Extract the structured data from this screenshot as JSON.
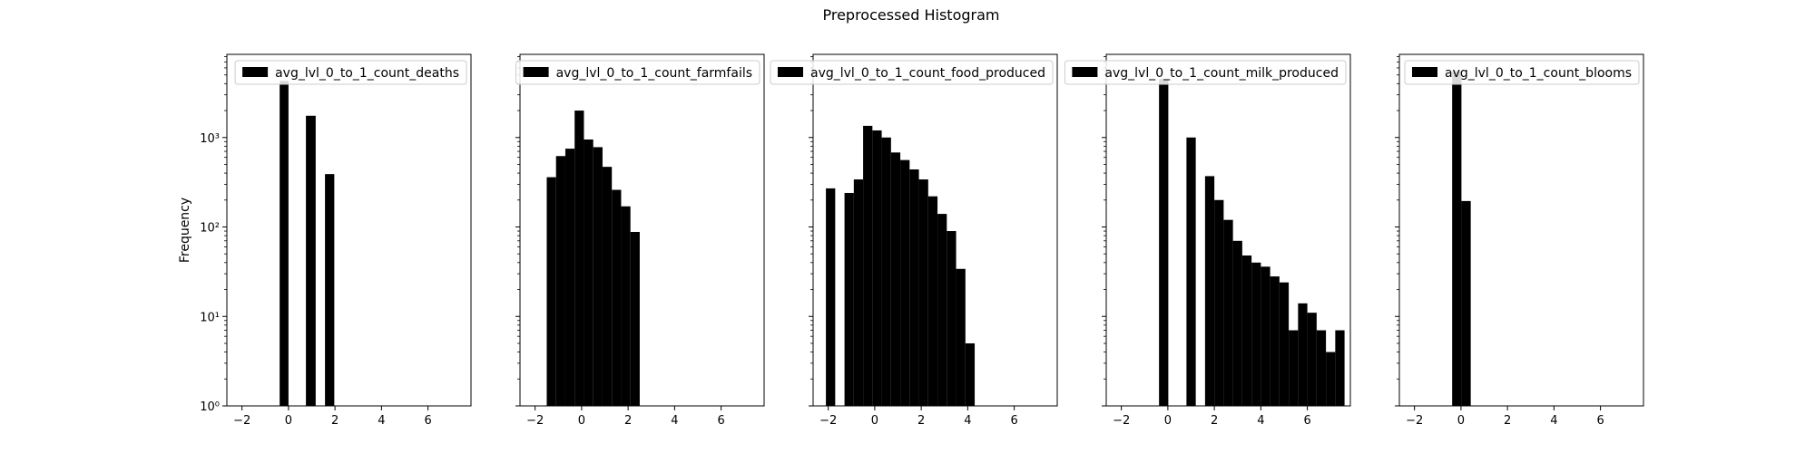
{
  "figure": {
    "title": "Preprocessed Histogram"
  },
  "colors": {
    "bar": "#000000",
    "axes": "#000000",
    "background": "#ffffff"
  },
  "chart_data": [
    {
      "type": "bar",
      "title": "",
      "ylabel": "Frequency",
      "xlabel": "",
      "yscale": "log",
      "xlim": [
        -2.65,
        7.85
      ],
      "ylim": [
        1,
        8500
      ],
      "xticks": [
        -2,
        0,
        2,
        4,
        6
      ],
      "xtick_labels": [
        "−2",
        "0",
        "2",
        "4",
        "6"
      ],
      "yticks": [
        1,
        10,
        100,
        1000
      ],
      "ytick_labels": [
        "10⁰",
        "10¹",
        "10²",
        "10³"
      ],
      "legend": {
        "label": "avg_lvl_0_to_1_count_deaths",
        "position": "upper right"
      },
      "series": [
        {
          "bins": [
            {
              "x0": -0.38,
              "x1": 0.0,
              "value": 4300
            },
            {
              "x0": 0.75,
              "x1": 1.17,
              "value": 1750
            },
            {
              "x0": 1.57,
              "x1": 1.97,
              "value": 390
            }
          ]
        }
      ]
    },
    {
      "type": "bar",
      "title": "",
      "ylabel": "",
      "xlabel": "",
      "yscale": "log",
      "xlim": [
        -2.65,
        7.85
      ],
      "ylim": [
        1,
        8500
      ],
      "xticks": [
        -2,
        0,
        2,
        4,
        6
      ],
      "xtick_labels": [
        "−2",
        "0",
        "2",
        "4",
        "6"
      ],
      "yticks": [
        1,
        10,
        100,
        1000
      ],
      "ytick_labels": [
        "",
        "",
        "",
        ""
      ],
      "legend": {
        "label": "avg_lvl_0_to_1_count_farmfails",
        "position": "upper right"
      },
      "series": [
        {
          "bins": [
            {
              "x0": -1.5,
              "x1": -1.1,
              "value": 360
            },
            {
              "x0": -1.1,
              "x1": -0.7,
              "value": 620
            },
            {
              "x0": -0.7,
              "x1": -0.3,
              "value": 750
            },
            {
              "x0": -0.3,
              "x1": 0.1,
              "value": 2000
            },
            {
              "x0": 0.1,
              "x1": 0.5,
              "value": 950
            },
            {
              "x0": 0.5,
              "x1": 0.9,
              "value": 780
            },
            {
              "x0": 0.9,
              "x1": 1.3,
              "value": 470
            },
            {
              "x0": 1.3,
              "x1": 1.7,
              "value": 260
            },
            {
              "x0": 1.7,
              "x1": 2.1,
              "value": 170
            },
            {
              "x0": 2.1,
              "x1": 2.5,
              "value": 88
            }
          ]
        }
      ]
    },
    {
      "type": "bar",
      "title": "",
      "ylabel": "",
      "xlabel": "",
      "yscale": "log",
      "xlim": [
        -2.65,
        7.85
      ],
      "ylim": [
        1,
        8500
      ],
      "xticks": [
        -2,
        0,
        2,
        4,
        6
      ],
      "xtick_labels": [
        "−2",
        "0",
        "2",
        "4",
        "6"
      ],
      "yticks": [
        1,
        10,
        100,
        1000
      ],
      "ytick_labels": [
        "",
        "",
        "",
        ""
      ],
      "legend": {
        "label": "avg_lvl_0_to_1_count_food_produced",
        "position": "upper right"
      },
      "series": [
        {
          "bins": [
            {
              "x0": -2.1,
              "x1": -1.7,
              "value": 270
            },
            {
              "x0": -1.3,
              "x1": -0.9,
              "value": 240
            },
            {
              "x0": -0.9,
              "x1": -0.5,
              "value": 340
            },
            {
              "x0": -0.5,
              "x1": -0.1,
              "value": 1350
            },
            {
              "x0": -0.1,
              "x1": 0.3,
              "value": 1200
            },
            {
              "x0": 0.3,
              "x1": 0.7,
              "value": 1000
            },
            {
              "x0": 0.7,
              "x1": 1.1,
              "value": 680
            },
            {
              "x0": 1.1,
              "x1": 1.5,
              "value": 560
            },
            {
              "x0": 1.5,
              "x1": 1.9,
              "value": 440
            },
            {
              "x0": 1.9,
              "x1": 2.3,
              "value": 340
            },
            {
              "x0": 2.3,
              "x1": 2.7,
              "value": 220
            },
            {
              "x0": 2.7,
              "x1": 3.1,
              "value": 140
            },
            {
              "x0": 3.1,
              "x1": 3.5,
              "value": 90
            },
            {
              "x0": 3.5,
              "x1": 3.9,
              "value": 34
            },
            {
              "x0": 3.9,
              "x1": 4.3,
              "value": 5
            }
          ]
        }
      ]
    },
    {
      "type": "bar",
      "title": "",
      "ylabel": "",
      "xlabel": "",
      "yscale": "log",
      "xlim": [
        -2.65,
        7.85
      ],
      "ylim": [
        1,
        8500
      ],
      "xticks": [
        -2,
        0,
        2,
        4,
        6
      ],
      "xtick_labels": [
        "−2",
        "0",
        "2",
        "4",
        "6"
      ],
      "yticks": [
        1,
        10,
        100,
        1000
      ],
      "ytick_labels": [
        "",
        "",
        "",
        ""
      ],
      "legend": {
        "label": "avg_lvl_0_to_1_count_milk_produced",
        "position": "upper right"
      },
      "series": [
        {
          "bins": [
            {
              "x0": -0.38,
              "x1": 0.02,
              "value": 4500
            },
            {
              "x0": 0.8,
              "x1": 1.2,
              "value": 1000
            },
            {
              "x0": 1.6,
              "x1": 2.0,
              "value": 370
            },
            {
              "x0": 2.0,
              "x1": 2.4,
              "value": 200
            },
            {
              "x0": 2.4,
              "x1": 2.8,
              "value": 120
            },
            {
              "x0": 2.8,
              "x1": 3.2,
              "value": 70
            },
            {
              "x0": 3.2,
              "x1": 3.6,
              "value": 48
            },
            {
              "x0": 3.6,
              "x1": 4.0,
              "value": 40
            },
            {
              "x0": 4.0,
              "x1": 4.4,
              "value": 36
            },
            {
              "x0": 4.4,
              "x1": 4.8,
              "value": 28
            },
            {
              "x0": 4.8,
              "x1": 5.2,
              "value": 24
            },
            {
              "x0": 5.2,
              "x1": 5.6,
              "value": 7
            },
            {
              "x0": 5.6,
              "x1": 6.0,
              "value": 14
            },
            {
              "x0": 6.0,
              "x1": 6.4,
              "value": 11
            },
            {
              "x0": 6.4,
              "x1": 6.8,
              "value": 7
            },
            {
              "x0": 6.8,
              "x1": 7.2,
              "value": 4
            },
            {
              "x0": 7.2,
              "x1": 7.6,
              "value": 7
            }
          ]
        }
      ]
    },
    {
      "type": "bar",
      "title": "",
      "ylabel": "",
      "xlabel": "",
      "yscale": "log",
      "xlim": [
        -2.65,
        7.85
      ],
      "ylim": [
        1,
        8500
      ],
      "xticks": [
        -2,
        0,
        2,
        4,
        6
      ],
      "xtick_labels": [
        "−2",
        "0",
        "2",
        "4",
        "6"
      ],
      "yticks": [
        1,
        10,
        100,
        1000
      ],
      "ytick_labels": [
        "",
        "",
        "",
        ""
      ],
      "legend": {
        "label": "avg_lvl_0_to_1_count_blooms",
        "position": "upper right"
      },
      "series": [
        {
          "bins": [
            {
              "x0": -0.38,
              "x1": 0.02,
              "value": 5500
            },
            {
              "x0": 0.02,
              "x1": 0.42,
              "value": 195
            }
          ]
        }
      ]
    }
  ]
}
